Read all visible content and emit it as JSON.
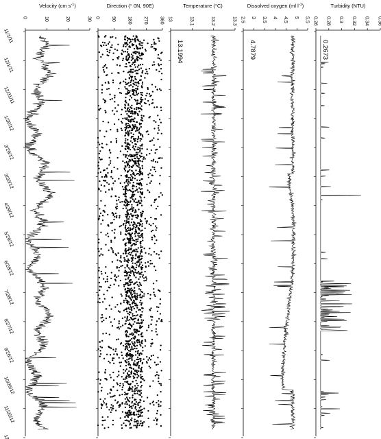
{
  "chart_data": {
    "type": "line",
    "orientation": "vertical-time",
    "y_axis": {
      "labels": [
        "11/1/11",
        "12/1/11",
        "12/31/11",
        "1/30/12",
        "2/29/12",
        "3/30/12",
        "4/29/12",
        "5/29/12",
        "6/28/12",
        "7/28/12",
        "8/27/12",
        "9/26/12",
        "10/26/12",
        "11/25/12",
        "12/25/12"
      ],
      "time_range": [
        "2011-11-01",
        "2012-12-25"
      ]
    },
    "panels": [
      {
        "name": "velocity",
        "title": "Velocity (cm s",
        "title_sup": "-1",
        "title_end": ")",
        "type": "line",
        "xlim": [
          0,
          30
        ],
        "ticks": [
          0,
          10,
          20,
          30
        ],
        "annotation": "",
        "series": [
          {
            "name": "",
            "summary": {
              "typical": 7,
              "min": 0,
              "max": 27,
              "mean": 7.5
            }
          }
        ]
      },
      {
        "name": "direction",
        "title": "Direction (° 0N, 90E)",
        "type": "scatter",
        "xlim": [
          0,
          360
        ],
        "ticks": [
          0,
          90,
          180,
          270,
          360
        ],
        "annotation": "",
        "series": [
          {
            "name": "",
            "summary": {
              "min": 0,
              "max": 360,
              "dense_band": [
                150,
                250
              ]
            }
          }
        ]
      },
      {
        "name": "temperature",
        "title": "Temperature (°C)",
        "type": "line",
        "xlim": [
          13.0,
          13.3
        ],
        "ticks": [
          "13",
          "13.1",
          "13.2",
          "13.3"
        ],
        "annotation": "13.1994",
        "series": [
          {
            "name": "",
            "summary": {
              "typical": 13.2,
              "min": 13.12,
              "max": 13.28
            }
          }
        ]
      },
      {
        "name": "dissolved_oxygen",
        "title": "Dissolved oxygen (ml l",
        "title_sup": "-1",
        "title_end": ")",
        "type": "line",
        "xlim": [
          2.5,
          5.5
        ],
        "ticks": [
          "2.5",
          "3",
          "3.5",
          "4",
          "4.5",
          "5",
          "5.5"
        ],
        "annotation": "4.7879",
        "series": [
          {
            "name": "",
            "summary": {
              "typical": 4.85,
              "min": 3.7,
              "max": 5.1
            }
          }
        ]
      },
      {
        "name": "turbidity",
        "title": "Turbidity (NTU)",
        "type": "line",
        "xlim": [
          0.26,
          0.36
        ],
        "ticks": [
          "0.26",
          "0.28",
          "0.3",
          "0.32",
          "0.34",
          "0.36"
        ],
        "annotation": "0.2673",
        "series": [
          {
            "name": "",
            "summary": {
              "baseline": 0.2673,
              "max": 0.33
            }
          }
        ]
      }
    ]
  }
}
